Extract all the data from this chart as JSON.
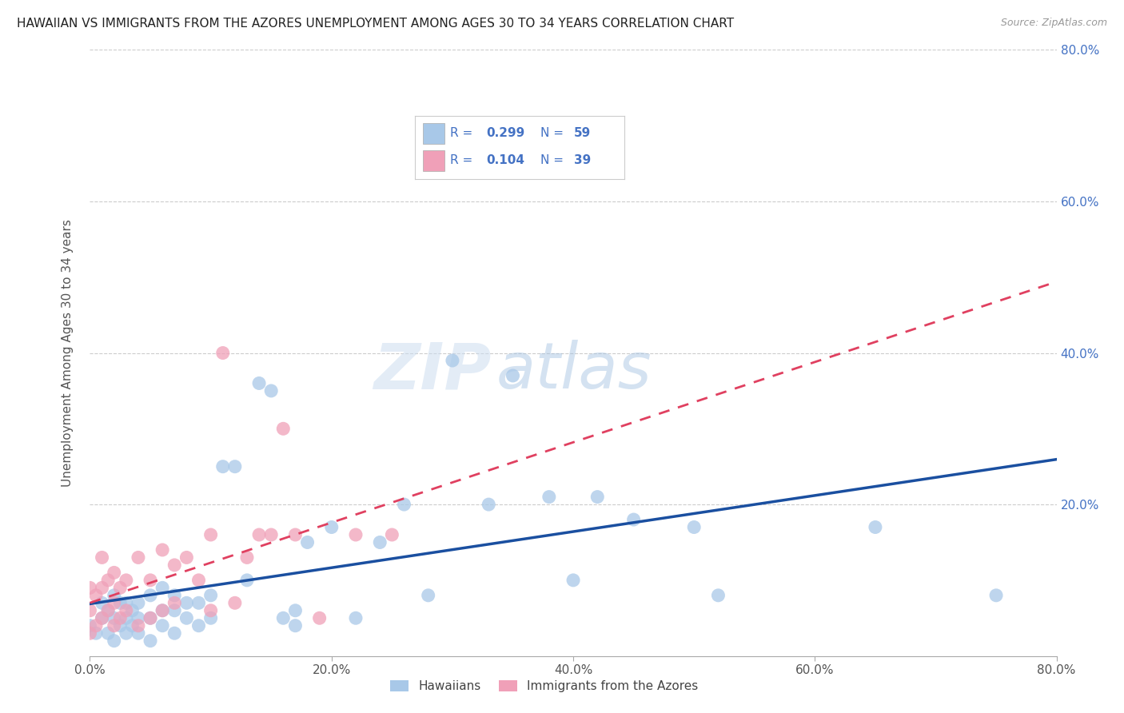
{
  "title": "HAWAIIAN VS IMMIGRANTS FROM THE AZORES UNEMPLOYMENT AMONG AGES 30 TO 34 YEARS CORRELATION CHART",
  "source": "Source: ZipAtlas.com",
  "ylabel": "Unemployment Among Ages 30 to 34 years",
  "xlim": [
    0.0,
    0.8
  ],
  "ylim": [
    0.0,
    0.8
  ],
  "xtick_labels": [
    "0.0%",
    "20.0%",
    "40.0%",
    "60.0%",
    "80.0%"
  ],
  "xtick_vals": [
    0.0,
    0.2,
    0.4,
    0.6,
    0.8
  ],
  "ytick_vals": [
    0.2,
    0.4,
    0.6,
    0.8
  ],
  "right_ytick_labels": [
    "20.0%",
    "40.0%",
    "60.0%",
    "80.0%"
  ],
  "right_ytick_vals": [
    0.2,
    0.4,
    0.6,
    0.8
  ],
  "watermark_zip": "ZIP",
  "watermark_atlas": "atlas",
  "hawaiian_color": "#a8c8e8",
  "azores_color": "#f0a0b8",
  "hawaiian_line_color": "#1a4fa0",
  "azores_line_color": "#e04060",
  "legend_color": "#4472c4",
  "legend_R_hawaiian": "0.299",
  "legend_N_hawaiian": "59",
  "legend_R_azores": "0.104",
  "legend_N_azores": "39",
  "hawaiian_x": [
    0.0,
    0.005,
    0.01,
    0.01,
    0.015,
    0.015,
    0.02,
    0.02,
    0.02,
    0.025,
    0.025,
    0.03,
    0.03,
    0.03,
    0.035,
    0.035,
    0.04,
    0.04,
    0.04,
    0.05,
    0.05,
    0.05,
    0.06,
    0.06,
    0.06,
    0.07,
    0.07,
    0.07,
    0.08,
    0.08,
    0.09,
    0.09,
    0.1,
    0.1,
    0.11,
    0.12,
    0.13,
    0.14,
    0.15,
    0.16,
    0.17,
    0.17,
    0.18,
    0.2,
    0.22,
    0.24,
    0.26,
    0.28,
    0.3,
    0.33,
    0.35,
    0.38,
    0.4,
    0.42,
    0.45,
    0.5,
    0.52,
    0.65,
    0.75
  ],
  "hawaiian_y": [
    0.04,
    0.03,
    0.05,
    0.07,
    0.03,
    0.06,
    0.02,
    0.05,
    0.08,
    0.04,
    0.07,
    0.03,
    0.05,
    0.07,
    0.04,
    0.06,
    0.03,
    0.05,
    0.07,
    0.02,
    0.05,
    0.08,
    0.04,
    0.06,
    0.09,
    0.03,
    0.06,
    0.08,
    0.05,
    0.07,
    0.04,
    0.07,
    0.05,
    0.08,
    0.25,
    0.25,
    0.1,
    0.36,
    0.35,
    0.05,
    0.04,
    0.06,
    0.15,
    0.17,
    0.05,
    0.15,
    0.2,
    0.08,
    0.39,
    0.2,
    0.37,
    0.21,
    0.1,
    0.21,
    0.18,
    0.17,
    0.08,
    0.17,
    0.08
  ],
  "azores_x": [
    0.0,
    0.0,
    0.0,
    0.005,
    0.005,
    0.01,
    0.01,
    0.01,
    0.015,
    0.015,
    0.02,
    0.02,
    0.02,
    0.025,
    0.025,
    0.03,
    0.03,
    0.04,
    0.04,
    0.05,
    0.05,
    0.06,
    0.06,
    0.07,
    0.07,
    0.08,
    0.09,
    0.1,
    0.1,
    0.11,
    0.12,
    0.13,
    0.14,
    0.15,
    0.16,
    0.17,
    0.19,
    0.22,
    0.25
  ],
  "azores_y": [
    0.03,
    0.06,
    0.09,
    0.04,
    0.08,
    0.05,
    0.09,
    0.13,
    0.06,
    0.1,
    0.04,
    0.07,
    0.11,
    0.05,
    0.09,
    0.06,
    0.1,
    0.04,
    0.13,
    0.05,
    0.1,
    0.06,
    0.14,
    0.07,
    0.12,
    0.13,
    0.1,
    0.06,
    0.16,
    0.4,
    0.07,
    0.13,
    0.16,
    0.16,
    0.3,
    0.16,
    0.05,
    0.16,
    0.16
  ]
}
